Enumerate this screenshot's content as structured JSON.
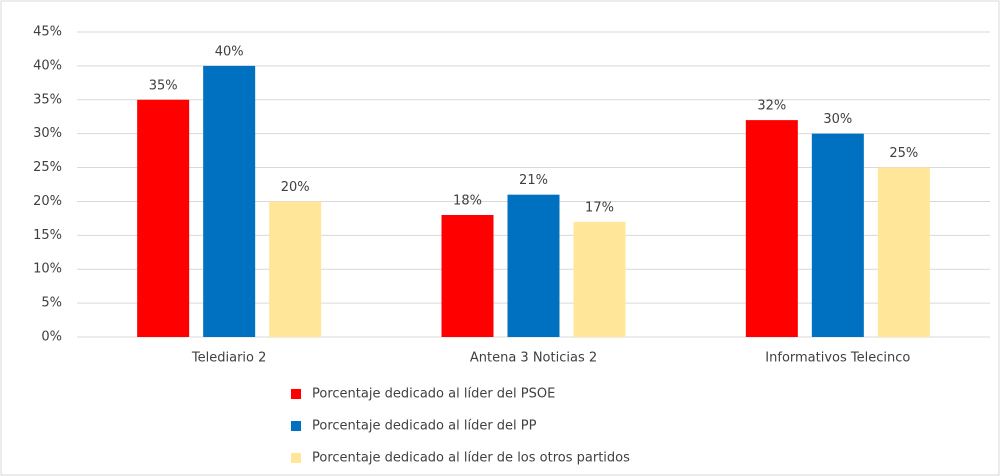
{
  "chart_data": {
    "type": "bar",
    "categories": [
      "Telediario 2",
      "Antena 3 Noticias 2",
      "Informativos Telecinco"
    ],
    "series": [
      {
        "name": "Porcentaje dedicado al líder del PSOE",
        "color": "#ff0000",
        "values": [
          35,
          18,
          32
        ],
        "value_labels": [
          "35%",
          "18%",
          "32%"
        ]
      },
      {
        "name": "Porcentaje dedicado al líder del PP",
        "color": "#0070c0",
        "values": [
          40,
          21,
          30
        ],
        "value_labels": [
          "40%",
          "21%",
          "30%"
        ]
      },
      {
        "name": "Porcentaje dedicado al líder de los otros partidos",
        "color": "#ffe699",
        "values": [
          20,
          17,
          25
        ],
        "value_labels": [
          "20%",
          "17%",
          "25%"
        ]
      }
    ],
    "ylim": [
      0,
      45
    ],
    "yticks": [
      {
        "value": 0,
        "label": "0%"
      },
      {
        "value": 5,
        "label": "5%"
      },
      {
        "value": 10,
        "label": "10%"
      },
      {
        "value": 15,
        "label": "15%"
      },
      {
        "value": 20,
        "label": "20%"
      },
      {
        "value": 25,
        "label": "25%"
      },
      {
        "value": 30,
        "label": "30%"
      },
      {
        "value": 35,
        "label": "35%"
      },
      {
        "value": 40,
        "label": "40%"
      },
      {
        "value": 45,
        "label": "45%"
      }
    ],
    "grid": true,
    "legend": "bottom"
  }
}
